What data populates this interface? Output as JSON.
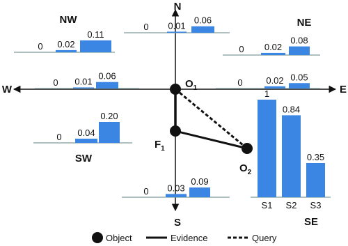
{
  "axes": {
    "north": "N",
    "south": "S",
    "west": "W",
    "east": "E"
  },
  "groups": [
    {
      "name": "NW",
      "values": [
        0,
        0.02,
        0.11
      ]
    },
    {
      "values": [
        0,
        0.01,
        0.06
      ]
    },
    {
      "name": "NE",
      "values": [
        0,
        0.02,
        0.08
      ]
    },
    {
      "values": [
        0,
        0.01,
        0.06
      ]
    },
    {
      "values": [
        0,
        0.02,
        0.05
      ]
    },
    {
      "name": "SW",
      "values": [
        0,
        0.04,
        0.2
      ],
      "value_labels": [
        "0",
        "0.04",
        "0.20"
      ]
    },
    {
      "values": [
        0,
        0.03,
        0.09
      ]
    },
    {
      "name": "SE",
      "categories": [
        "S1",
        "S2",
        "S3"
      ],
      "values": [
        1,
        0.84,
        0.35
      ]
    }
  ],
  "nodes": [
    {
      "label": "O",
      "sub": "1"
    },
    {
      "label": "F",
      "sub": "1"
    },
    {
      "label": "O",
      "sub": "2"
    }
  ],
  "legend": [
    "Object",
    "Evidence",
    "Query"
  ]
}
